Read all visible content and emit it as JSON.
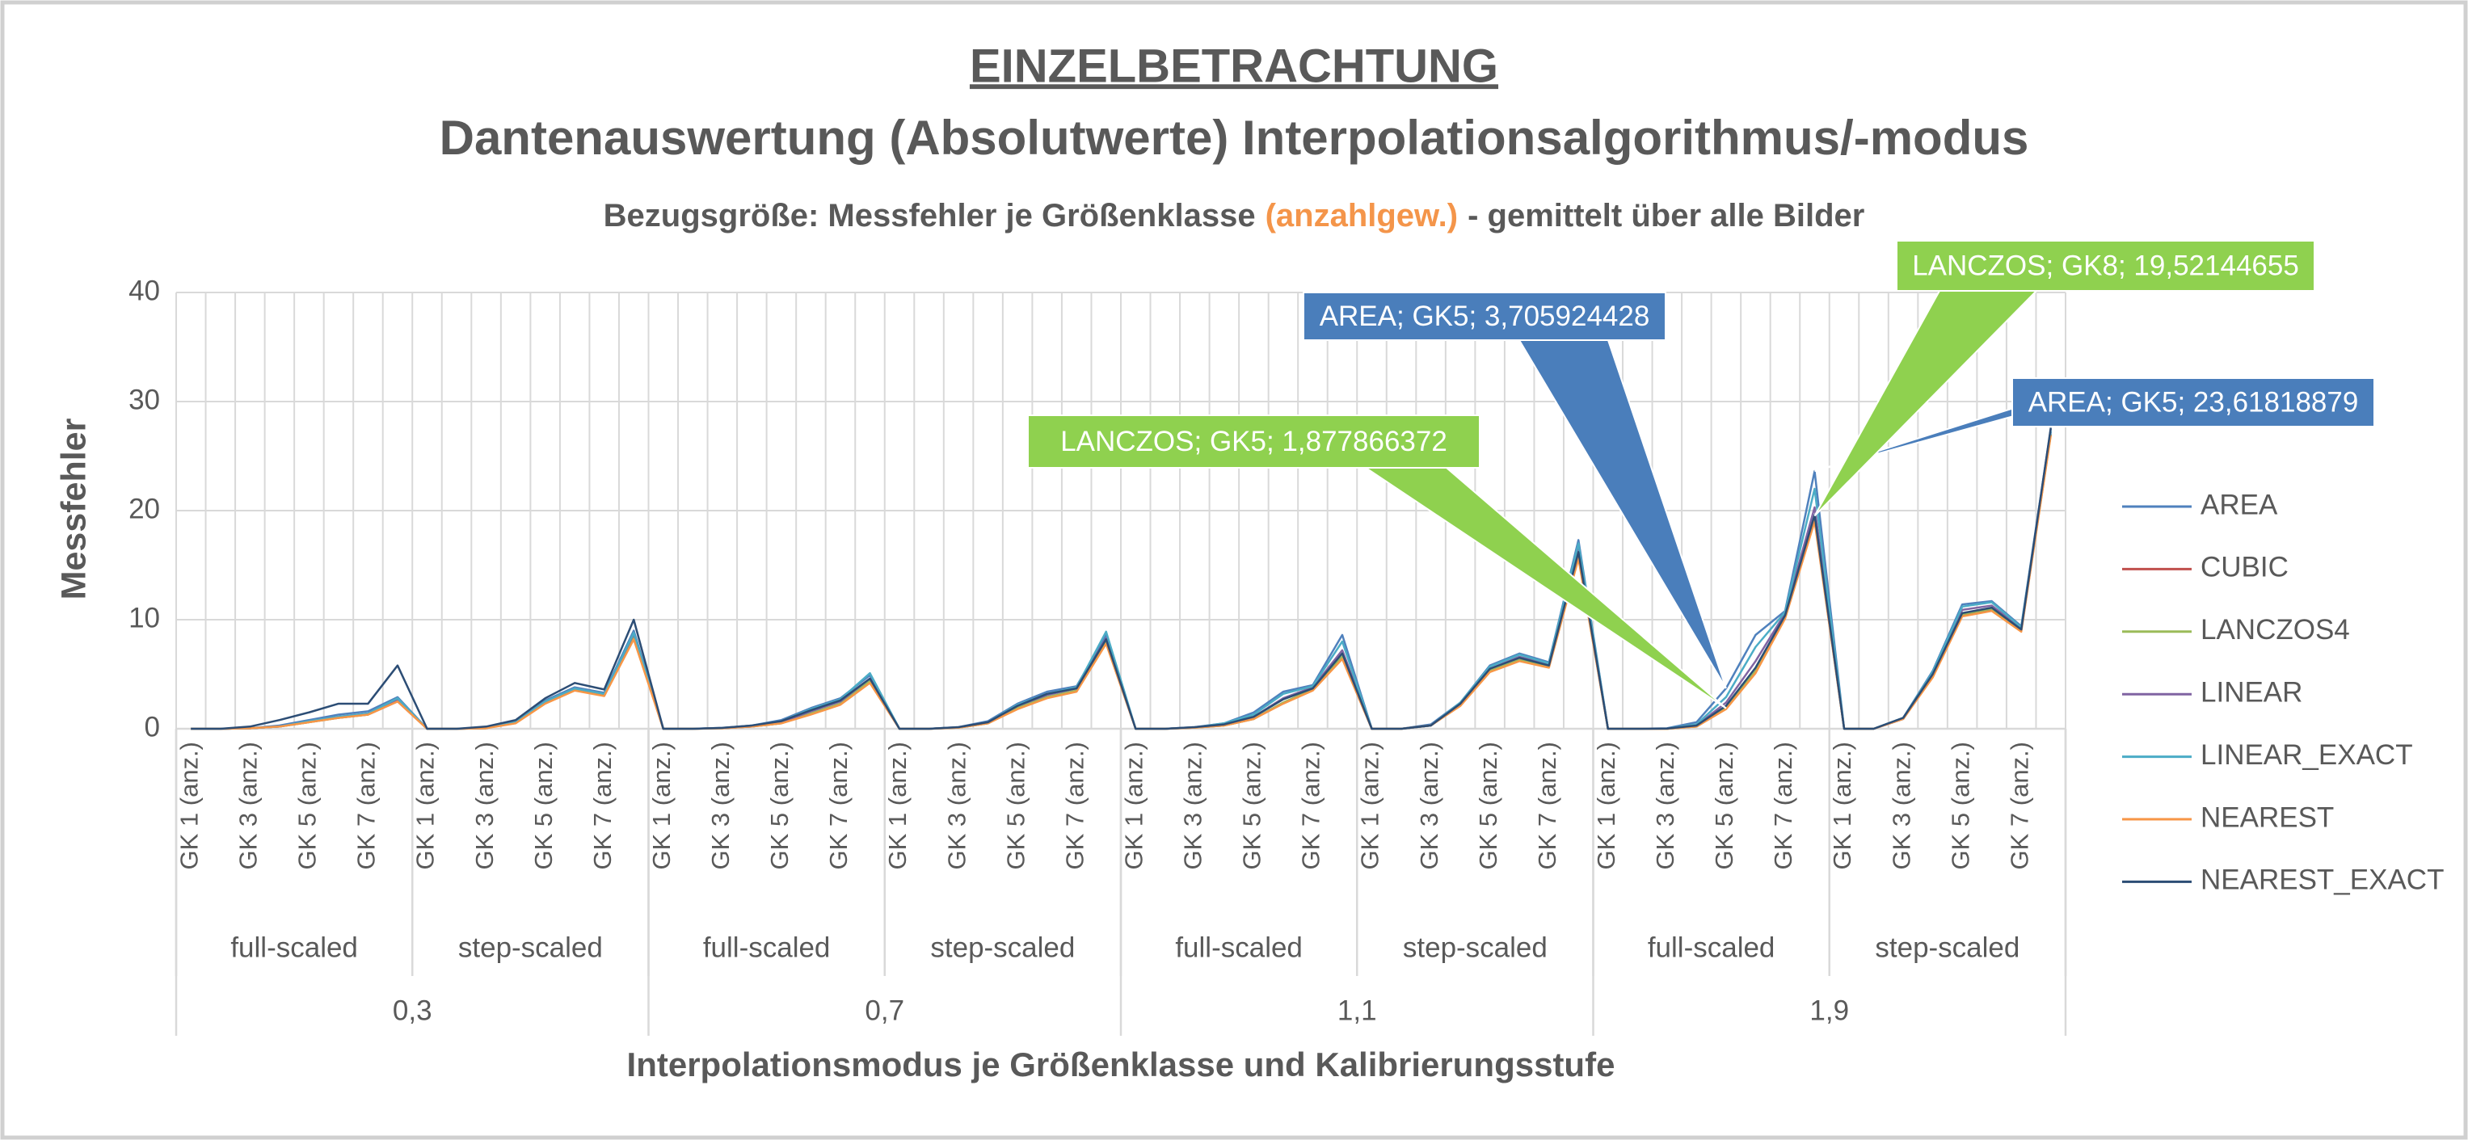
{
  "chart_data": {
    "type": "line",
    "title": "EINZELBETRACHTUNG",
    "subtitle": "Dantenauswertung (Absolutwerte) Interpolationsalgorithmus/-modus",
    "note_parts": [
      "Bezugsgröße: Messfehler je Größenklasse",
      "(anzahlgew.)",
      "- gemittelt über alle Bilder"
    ],
    "note_colors": [
      "#595959",
      "#f4954a",
      "#595959"
    ],
    "y_label": "Messfehler",
    "x_label": "Interpolationsmodus je Größenklasse und Kalibrierungsstufe",
    "categories": [
      "GK 1 (anz.)",
      null,
      "GK 3 (anz.)",
      null,
      "GK 5 (anz.)",
      null,
      "GK 7 (anz.)",
      null,
      "GK 1 (anz.)",
      null,
      "GK 3 (anz.)",
      null,
      "GK 5 (anz.)",
      null,
      "GK 7 (anz.)",
      null,
      "GK 1 (anz.)",
      null,
      "GK 3 (anz.)",
      null,
      "GK 5 (anz.)",
      null,
      "GK 7 (anz.)",
      null,
      "GK 1 (anz.)",
      null,
      "GK 3 (anz.)",
      null,
      "GK 5 (anz.)",
      null,
      "GK 7 (anz.)",
      null,
      "GK 1 (anz.)",
      null,
      "GK 3 (anz.)",
      null,
      "GK 5 (anz.)",
      null,
      "GK 7 (anz.)",
      null,
      "GK 1 (anz.)",
      null,
      "GK 3 (anz.)",
      null,
      "GK 5 (anz.)",
      null,
      "GK 7 (anz.)",
      null,
      "GK 1 (anz.)",
      null,
      "GK 3 (anz.)",
      null,
      "GK 5 (anz.)",
      null,
      "GK 7 (anz.)",
      null,
      "GK 1 (anz.)",
      null,
      "GK 3 (anz.)",
      null,
      "GK 5 (anz.)",
      null,
      "GK 7 (anz.)",
      null
    ],
    "x_groups": [
      "full-scaled",
      "step-scaled",
      "full-scaled",
      "step-scaled",
      "full-scaled",
      "step-scaled",
      "full-scaled",
      "step-scaled"
    ],
    "x_supergroups": [
      "0,3",
      "0,7",
      "1,1",
      "1,9"
    ],
    "ylim": [
      0,
      40
    ],
    "yticks": [
      0,
      10,
      20,
      30,
      40
    ],
    "grid": true,
    "legend": "right",
    "series": [
      {
        "name": "AREA",
        "color": "#4f81bd",
        "label_color": "#4a7ebb",
        "values": [
          0,
          0,
          0.05,
          0.3,
          0.8,
          1.3,
          1.6,
          2.9,
          0,
          0,
          0.08,
          0.7,
          2.6,
          3.8,
          3.3,
          9.0,
          0,
          0,
          0.08,
          0.3,
          0.8,
          1.9,
          2.8,
          4.9,
          0,
          0,
          0.15,
          0.7,
          2.3,
          3.4,
          3.9,
          8.6,
          0,
          0,
          0.15,
          0.5,
          1.5,
          3.4,
          4.0,
          8.6,
          0,
          0,
          0.4,
          2.4,
          5.8,
          6.9,
          6.1,
          17.3,
          0,
          0,
          0.05,
          0.6,
          3.705924428,
          8.6,
          10.8,
          23.61818879,
          0,
          0,
          1.0,
          5.3,
          11.4,
          11.7,
          9.4,
          27.5
        ],
        "value_labels": [
          null,
          null,
          null,
          null,
          null,
          null,
          null,
          null,
          null,
          null,
          null,
          null,
          null,
          null,
          null,
          null,
          null,
          null,
          null,
          null,
          null,
          null,
          null,
          null,
          null,
          null,
          null,
          null,
          null,
          null,
          null,
          null,
          null,
          null,
          null,
          null,
          null,
          null,
          null,
          null,
          null,
          null,
          null,
          null,
          null,
          null,
          null,
          null,
          null,
          null,
          null,
          null,
          "AREA; GK5; 3,705924428",
          null,
          null,
          "AREA; GK5; 23,61818879",
          null,
          null,
          null,
          null,
          null,
          null,
          null,
          null
        ]
      },
      {
        "name": "CUBIC",
        "color": "#c0504d",
        "values": [
          0,
          0,
          0.05,
          0.2,
          0.6,
          1.0,
          1.3,
          2.5,
          0,
          0,
          0.05,
          0.6,
          2.4,
          3.6,
          3.1,
          8.4,
          0,
          0,
          0.05,
          0.2,
          0.5,
          1.4,
          2.3,
          4.3,
          0,
          0,
          0.1,
          0.5,
          1.9,
          2.9,
          3.5,
          7.9,
          0,
          0,
          0.1,
          0.3,
          0.9,
          2.4,
          3.6,
          6.5,
          0,
          0,
          0.3,
          2.2,
          5.3,
          6.3,
          5.7,
          15.8,
          0,
          0,
          0,
          0.2,
          1.9,
          5.2,
          10.2,
          19.2,
          0,
          0,
          0.9,
          4.8,
          10.4,
          10.9,
          9.0,
          27.0
        ]
      },
      {
        "name": "LANCZOS4",
        "color": "#9bbb59",
        "label_color": "#8fd14f",
        "values": [
          0,
          0,
          0.05,
          0.2,
          0.6,
          1.0,
          1.3,
          2.6,
          0,
          0,
          0.05,
          0.6,
          2.4,
          3.6,
          3.1,
          8.5,
          0,
          0,
          0.05,
          0.2,
          0.5,
          1.4,
          2.3,
          4.4,
          0,
          0,
          0.1,
          0.5,
          1.9,
          2.9,
          3.5,
          8.0,
          0,
          0,
          0.1,
          0.3,
          0.9,
          2.4,
          3.6,
          6.6,
          0,
          0,
          0.3,
          2.2,
          5.3,
          6.3,
          5.7,
          16.0,
          0,
          0,
          0,
          0.2,
          1.877866372,
          5.3,
          10.3,
          19.52144655,
          0,
          0,
          0.9,
          4.8,
          10.5,
          11.0,
          9.1,
          27.0
        ],
        "value_labels": [
          null,
          null,
          null,
          null,
          null,
          null,
          null,
          null,
          null,
          null,
          null,
          null,
          null,
          null,
          null,
          null,
          null,
          null,
          null,
          null,
          null,
          null,
          null,
          null,
          null,
          null,
          null,
          null,
          null,
          null,
          null,
          null,
          null,
          null,
          null,
          null,
          null,
          null,
          null,
          null,
          null,
          null,
          null,
          null,
          null,
          null,
          null,
          null,
          null,
          null,
          null,
          null,
          "LANCZOS; GK5; 1,877866372",
          null,
          null,
          "LANCZOS; GK8; 19,52144655",
          null,
          null,
          null,
          null,
          null,
          null,
          null,
          null
        ]
      },
      {
        "name": "LINEAR",
        "color": "#8064a2",
        "values": [
          0,
          0,
          0.05,
          0.2,
          0.7,
          1.1,
          1.4,
          2.7,
          0,
          0,
          0.06,
          0.6,
          2.5,
          3.7,
          3.2,
          8.7,
          0,
          0,
          0.06,
          0.2,
          0.6,
          1.6,
          2.5,
          4.6,
          0,
          0,
          0.12,
          0.6,
          2.1,
          3.1,
          3.7,
          8.3,
          0,
          0,
          0.12,
          0.4,
          1.1,
          2.8,
          3.8,
          7.2,
          0,
          0,
          0.3,
          2.3,
          5.5,
          6.6,
          5.9,
          16.6,
          0,
          0,
          0.02,
          0.3,
          2.4,
          6.2,
          10.6,
          20.3,
          0,
          0,
          0.9,
          5.0,
          10.9,
          11.3,
          9.2,
          27.2
        ]
      },
      {
        "name": "LINEAR_EXACT",
        "color": "#4bacc6",
        "values": [
          0,
          0,
          0.05,
          0.2,
          0.7,
          1.1,
          1.4,
          2.8,
          0,
          0,
          0.06,
          0.6,
          2.5,
          3.7,
          3.2,
          8.8,
          0,
          0,
          0.06,
          0.3,
          0.7,
          1.8,
          2.7,
          5.1,
          0,
          0,
          0.12,
          0.6,
          2.2,
          3.2,
          3.8,
          8.9,
          0,
          0,
          0.12,
          0.5,
          1.3,
          3.2,
          3.9,
          8.0,
          0,
          0,
          0.3,
          2.4,
          5.7,
          6.8,
          6.0,
          17.0,
          0,
          0,
          0.02,
          0.4,
          2.9,
          7.5,
          10.7,
          22.0,
          0,
          0,
          1.0,
          5.2,
          11.2,
          11.6,
          9.3,
          27.3
        ]
      },
      {
        "name": "NEAREST",
        "color": "#f79646",
        "values": [
          0,
          0,
          0.05,
          0.2,
          0.6,
          1.0,
          1.3,
          2.5,
          0,
          0,
          0.05,
          0.5,
          2.3,
          3.5,
          3.0,
          8.2,
          0,
          0,
          0.05,
          0.2,
          0.5,
          1.3,
          2.2,
          4.2,
          0,
          0,
          0.1,
          0.5,
          1.8,
          2.8,
          3.4,
          7.8,
          0,
          0,
          0.1,
          0.3,
          0.9,
          2.3,
          3.5,
          6.4,
          0,
          0,
          0.3,
          2.1,
          5.2,
          6.2,
          5.6,
          15.6,
          0,
          0,
          0,
          0.2,
          1.8,
          5.1,
          10.1,
          19.0,
          0,
          0,
          0.9,
          4.7,
          10.3,
          10.8,
          8.9,
          26.9
        ]
      },
      {
        "name": "NEAREST_EXACT",
        "color": "#2c4d75",
        "values": [
          0,
          0,
          0.2,
          0.8,
          1.5,
          2.3,
          2.3,
          5.8,
          0,
          0,
          0.2,
          0.8,
          2.8,
          4.2,
          3.6,
          10.0,
          0,
          0,
          0.08,
          0.3,
          0.7,
          1.7,
          2.6,
          4.6,
          0,
          0,
          0.15,
          0.6,
          2.1,
          3.2,
          3.7,
          8.2,
          0,
          0,
          0.15,
          0.4,
          1.1,
          2.7,
          3.7,
          6.9,
          0,
          0,
          0.3,
          2.3,
          5.5,
          6.5,
          5.8,
          16.2,
          0,
          0,
          0.02,
          0.3,
          2.1,
          5.6,
          10.4,
          19.6,
          0,
          0,
          1.0,
          5.0,
          10.6,
          11.1,
          9.1,
          27.6
        ]
      }
    ]
  }
}
